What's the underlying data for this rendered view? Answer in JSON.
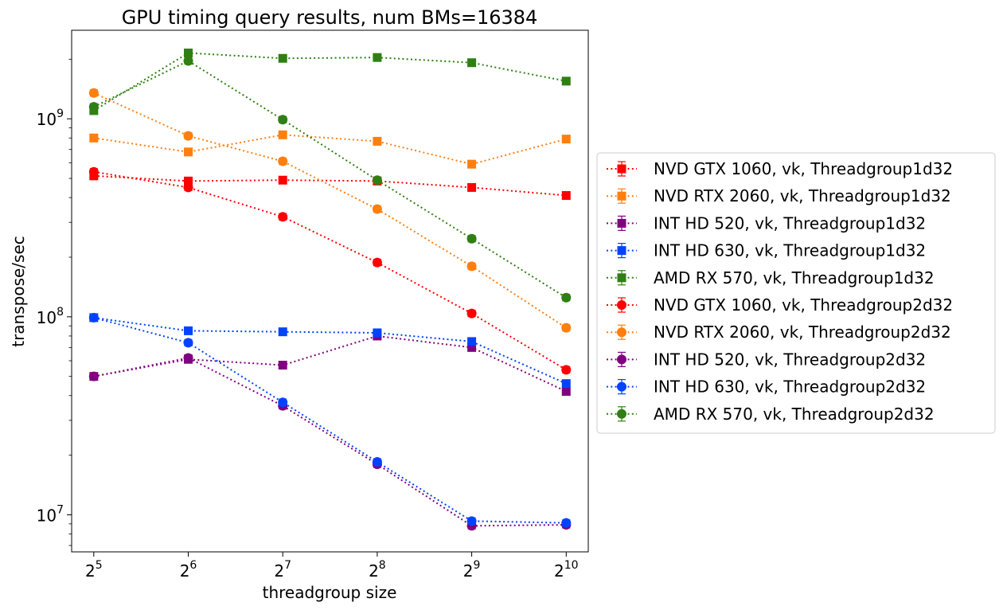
{
  "chart_data": {
    "type": "line",
    "title": "GPU timing query results, num BMs=16384",
    "xlabel": "threadgroup size",
    "ylabel": "transpose/sec",
    "xscale": "log2",
    "yscale": "log10",
    "x": [
      32,
      64,
      128,
      256,
      512,
      1024
    ],
    "x_tick_labels": [
      {
        "base": "2",
        "exp": "5"
      },
      {
        "base": "2",
        "exp": "6"
      },
      {
        "base": "2",
        "exp": "7"
      },
      {
        "base": "2",
        "exp": "8"
      },
      {
        "base": "2",
        "exp": "9"
      },
      {
        "base": "2",
        "exp": "10"
      }
    ],
    "y_tick_labels": [
      {
        "value": 10000000,
        "base": "10",
        "exp": "7"
      },
      {
        "value": 100000000,
        "base": "10",
        "exp": "8"
      },
      {
        "value": 1000000000,
        "base": "10",
        "exp": "9"
      }
    ],
    "xlim": [
      27.2,
      1204
    ],
    "ylim": [
      6500000,
      2800000000
    ],
    "grid": false,
    "legend_position": "outside-right",
    "series": [
      {
        "name": "NVD GTX 1060, vk, Threadgroup1d32",
        "color": "#ff0000",
        "marker": "square",
        "values": [
          515000000,
          485000000,
          490000000,
          485000000,
          450000000,
          410000000
        ]
      },
      {
        "name": "NVD RTX 2060, vk, Threadgroup1d32",
        "color": "#ff7f0e",
        "marker": "square",
        "values": [
          800000000,
          680000000,
          830000000,
          770000000,
          590000000,
          790000000
        ]
      },
      {
        "name": "INT HD 520, vk, Threadgroup1d32",
        "color": "#800080",
        "marker": "square",
        "values": [
          50000000,
          61000000,
          57000000,
          80000000,
          70000000,
          42000000
        ]
      },
      {
        "name": "INT HD 630, vk, Threadgroup1d32",
        "color": "#0043ff",
        "marker": "square",
        "values": [
          99000000,
          85000000,
          84000000,
          83000000,
          75000000,
          46000000
        ]
      },
      {
        "name": "AMD RX 570, vk, Threadgroup1d32",
        "color": "#2f7f14",
        "marker": "square",
        "values": [
          1100000000,
          2150000000,
          2020000000,
          2040000000,
          1920000000,
          1550000000
        ]
      },
      {
        "name": "NVD GTX 1060, vk, Threadgroup2d32",
        "color": "#ff0000",
        "marker": "circle",
        "values": [
          540000000,
          450000000,
          320000000,
          188000000,
          104000000,
          54000000
        ]
      },
      {
        "name": "NVD RTX 2060, vk, Threadgroup2d32",
        "color": "#ff7f0e",
        "marker": "circle",
        "values": [
          1350000000,
          820000000,
          610000000,
          350000000,
          180000000,
          88000000
        ]
      },
      {
        "name": "INT HD 520, vk, Threadgroup2d32",
        "color": "#800080",
        "marker": "circle",
        "values": [
          50000000,
          62000000,
          35500000,
          18000000,
          8800000,
          8900000
        ]
      },
      {
        "name": "INT HD 630, vk, Threadgroup2d32",
        "color": "#0043ff",
        "marker": "circle",
        "values": [
          99000000,
          74000000,
          37000000,
          18500000,
          9300000,
          9100000
        ]
      },
      {
        "name": "AMD RX 570, vk, Threadgroup2d32",
        "color": "#2f7f14",
        "marker": "circle",
        "values": [
          1150000000,
          1960000000,
          990000000,
          490000000,
          248000000,
          125000000
        ]
      }
    ]
  }
}
